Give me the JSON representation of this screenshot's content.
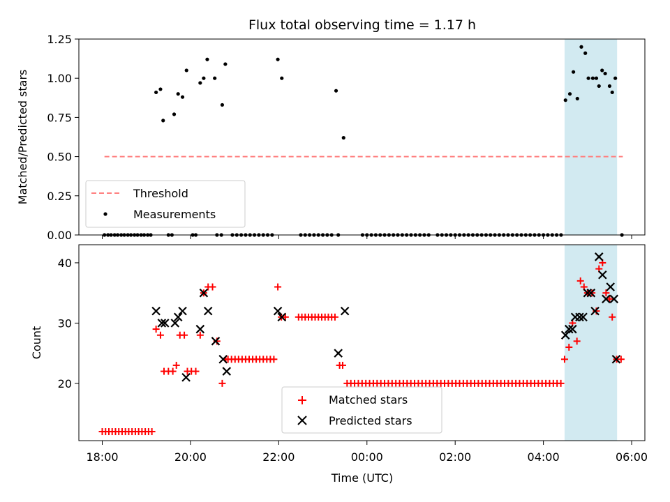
{
  "chart_data": {
    "title": "Flux total observing time = 1.17 h",
    "xlabel": "Time (UTC)",
    "x_unit": "hours since 18:00 UTC",
    "xlim": [
      -0.53,
      12.3
    ],
    "x_ticks": [
      {
        "value": 0,
        "label": "18:00"
      },
      {
        "value": 2,
        "label": "20:00"
      },
      {
        "value": 4,
        "label": "22:00"
      },
      {
        "value": 6,
        "label": "00:00"
      },
      {
        "value": 8,
        "label": "02:00"
      },
      {
        "value": 10,
        "label": "04:00"
      },
      {
        "value": 12,
        "label": "06:00"
      }
    ],
    "highlight_span": {
      "x": [
        10.48,
        11.67
      ],
      "color": "#add8e6"
    },
    "top_panel": {
      "type": "scatter",
      "ylabel": "Matched/Predicted stars",
      "ylim": [
        0,
        1.25
      ],
      "y_ticks": [
        "0.00",
        "0.25",
        "0.50",
        "0.75",
        "1.00",
        "1.25"
      ],
      "legend": [
        "Threshold",
        "Measurements"
      ],
      "threshold": {
        "name": "Threshold",
        "value": 0.5,
        "x_range": [
          0.05,
          11.8
        ],
        "color": "#ff7f7f"
      },
      "measurements": {
        "name": "Measurements",
        "color": "#000000",
        "points": [
          [
            1.22,
            0.91
          ],
          [
            1.32,
            0.93
          ],
          [
            1.38,
            0.73
          ],
          [
            1.63,
            0.77
          ],
          [
            1.72,
            0.9
          ],
          [
            1.82,
            0.88
          ],
          [
            1.91,
            1.05
          ],
          [
            2.22,
            0.97
          ],
          [
            2.3,
            1.0
          ],
          [
            2.38,
            1.12
          ],
          [
            2.55,
            1.0
          ],
          [
            2.72,
            0.83
          ],
          [
            2.79,
            1.09
          ],
          [
            3.98,
            1.12
          ],
          [
            4.07,
            1.0
          ],
          [
            5.3,
            0.92
          ],
          [
            5.47,
            0.62
          ],
          [
            10.5,
            0.86
          ],
          [
            10.6,
            0.9
          ],
          [
            10.68,
            1.04
          ],
          [
            10.77,
            0.87
          ],
          [
            10.86,
            1.2
          ],
          [
            10.95,
            1.16
          ],
          [
            11.02,
            1.0
          ],
          [
            11.12,
            1.0
          ],
          [
            11.2,
            1.0
          ],
          [
            11.26,
            0.95
          ],
          [
            11.33,
            1.05
          ],
          [
            11.4,
            1.03
          ],
          [
            11.5,
            0.95
          ],
          [
            11.56,
            0.91
          ],
          [
            11.63,
            1.0
          ]
        ],
        "zero_points_x": [
          0.05,
          0.13,
          0.2,
          0.28,
          0.35,
          0.43,
          0.5,
          0.58,
          0.65,
          0.73,
          0.8,
          0.88,
          0.95,
          1.03,
          1.1,
          1.5,
          1.58,
          2.05,
          2.12,
          2.6,
          2.7,
          2.95,
          3.05,
          3.15,
          3.25,
          3.35,
          3.45,
          3.55,
          3.65,
          3.75,
          3.85,
          4.5,
          4.6,
          4.7,
          4.8,
          4.9,
          5.0,
          5.1,
          5.2,
          5.35,
          5.9,
          6.0,
          6.1,
          6.2,
          6.3,
          6.4,
          6.5,
          6.6,
          6.7,
          6.8,
          6.9,
          7.0,
          7.1,
          7.2,
          7.3,
          7.4,
          7.6,
          7.7,
          7.8,
          7.9,
          8.0,
          8.1,
          8.2,
          8.3,
          8.4,
          8.5,
          8.6,
          8.7,
          8.8,
          8.9,
          9.0,
          9.1,
          9.2,
          9.3,
          9.4,
          9.5,
          9.6,
          9.7,
          9.8,
          9.9,
          10.0,
          10.1,
          10.2,
          10.3,
          10.4,
          11.78
        ]
      }
    },
    "bottom_panel": {
      "type": "scatter",
      "ylabel": "Count",
      "ylim": [
        10.5,
        43
      ],
      "y_ticks": [
        "20",
        "30",
        "40"
      ],
      "legend": [
        "Matched stars",
        "Predicted stars"
      ],
      "matched": {
        "name": "Matched stars",
        "marker": "+",
        "color": "#ff0000",
        "points": [
          [
            1.22,
            29
          ],
          [
            1.32,
            28
          ],
          [
            1.4,
            22
          ],
          [
            1.5,
            22
          ],
          [
            1.6,
            22
          ],
          [
            1.68,
            23
          ],
          [
            1.76,
            28
          ],
          [
            1.86,
            28
          ],
          [
            1.93,
            22
          ],
          [
            2.02,
            22
          ],
          [
            2.12,
            22
          ],
          [
            2.22,
            28
          ],
          [
            2.3,
            35
          ],
          [
            2.4,
            36
          ],
          [
            2.5,
            36
          ],
          [
            2.6,
            27
          ],
          [
            2.72,
            20
          ],
          [
            2.8,
            24
          ],
          [
            3.98,
            36
          ],
          [
            4.06,
            31
          ],
          [
            4.15,
            31
          ],
          [
            5.38,
            23
          ],
          [
            5.45,
            23
          ],
          [
            10.48,
            24
          ],
          [
            10.58,
            26
          ],
          [
            10.66,
            30
          ],
          [
            10.76,
            27
          ],
          [
            10.84,
            37
          ],
          [
            10.92,
            36
          ],
          [
            11.0,
            35
          ],
          [
            11.1,
            35
          ],
          [
            11.2,
            32
          ],
          [
            11.26,
            39
          ],
          [
            11.34,
            40
          ],
          [
            11.42,
            35
          ],
          [
            11.5,
            34
          ],
          [
            11.56,
            31
          ],
          [
            11.66,
            24
          ],
          [
            11.76,
            24
          ]
        ],
        "runs": [
          {
            "from": 0.0,
            "to": 1.15,
            "step": 0.075,
            "value": 12
          },
          {
            "from": 2.85,
            "to": 3.95,
            "step": 0.08,
            "value": 24
          },
          {
            "from": 4.45,
            "to": 5.3,
            "step": 0.075,
            "value": 31
          },
          {
            "from": 5.55,
            "to": 10.42,
            "step": 0.085,
            "value": 20
          }
        ]
      },
      "predicted": {
        "name": "Predicted stars",
        "marker": "x",
        "color": "#000000",
        "points": [
          [
            1.22,
            32
          ],
          [
            1.35,
            30
          ],
          [
            1.42,
            30
          ],
          [
            1.65,
            30
          ],
          [
            1.72,
            31
          ],
          [
            1.82,
            32
          ],
          [
            1.9,
            21
          ],
          [
            2.22,
            29
          ],
          [
            2.3,
            35
          ],
          [
            2.4,
            32
          ],
          [
            2.57,
            27
          ],
          [
            2.74,
            24
          ],
          [
            2.82,
            22
          ],
          [
            3.98,
            32
          ],
          [
            4.07,
            31
          ],
          [
            5.35,
            25
          ],
          [
            5.5,
            32
          ],
          [
            10.5,
            28
          ],
          [
            10.58,
            29
          ],
          [
            10.66,
            29
          ],
          [
            10.72,
            31
          ],
          [
            10.82,
            31
          ],
          [
            10.9,
            31
          ],
          [
            11.0,
            35
          ],
          [
            11.08,
            35
          ],
          [
            11.17,
            32
          ],
          [
            11.26,
            41
          ],
          [
            11.34,
            38
          ],
          [
            11.42,
            34
          ],
          [
            11.52,
            36
          ],
          [
            11.6,
            34
          ],
          [
            11.65,
            24
          ]
        ]
      }
    }
  }
}
